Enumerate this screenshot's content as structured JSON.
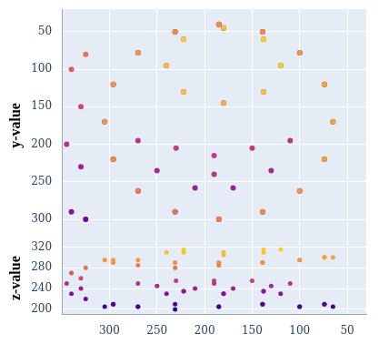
{
  "chart_data": {
    "type": "scatter",
    "ylabel": "y-value",
    "zlabel": "z-value",
    "xlim": [
      350,
      30
    ],
    "xticks": [
      50,
      100,
      150,
      200,
      250,
      300
    ],
    "ylim": [
      330,
      20
    ],
    "yticks": [
      50,
      100,
      150,
      200,
      250,
      300
    ],
    "zlim": [
      190,
      330
    ],
    "zticks": [
      200,
      240,
      280,
      320
    ],
    "grid": true,
    "color": "plasma",
    "x": [
      305,
      305,
      296,
      296,
      270,
      270,
      231,
      231,
      185,
      185,
      139,
      139,
      100,
      100,
      74,
      74,
      65,
      65,
      74,
      74,
      100,
      100,
      139,
      139,
      185,
      185,
      231,
      231,
      270,
      270,
      296,
      296,
      240,
      240,
      222,
      222,
      180,
      180,
      138,
      138,
      120,
      120,
      138,
      138,
      180,
      180,
      222,
      222,
      110,
      130,
      170,
      210,
      250,
      270,
      150,
      190,
      230,
      190,
      325,
      330,
      330,
      325,
      340,
      345,
      340
    ],
    "y": [
      170,
      170,
      220,
      220,
      262,
      262,
      290,
      290,
      300,
      300,
      290,
      290,
      262,
      262,
      220,
      220,
      170,
      170,
      120,
      120,
      78,
      78,
      50,
      50,
      40,
      40,
      50,
      50,
      78,
      78,
      120,
      120,
      95,
      95,
      130,
      130,
      145,
      145,
      130,
      130,
      95,
      95,
      60,
      60,
      45,
      45,
      60,
      60,
      195,
      235,
      258,
      258,
      235,
      195,
      205,
      215,
      205,
      240,
      80,
      150,
      230,
      300,
      100,
      200,
      290
    ],
    "z": [
      205,
      295,
      210,
      290,
      205,
      285,
      200,
      280,
      205,
      285,
      210,
      290,
      205,
      295,
      210,
      300,
      205,
      300,
      210,
      300,
      205,
      295,
      210,
      290,
      205,
      290,
      210,
      290,
      205,
      295,
      210,
      295,
      230,
      310,
      235,
      310,
      230,
      305,
      235,
      310,
      230,
      315,
      235,
      315,
      230,
      310,
      235,
      315,
      250,
      245,
      240,
      240,
      245,
      250,
      255,
      255,
      255,
      250,
      280,
      260,
      240,
      220,
      270,
      250,
      230
    ]
  }
}
